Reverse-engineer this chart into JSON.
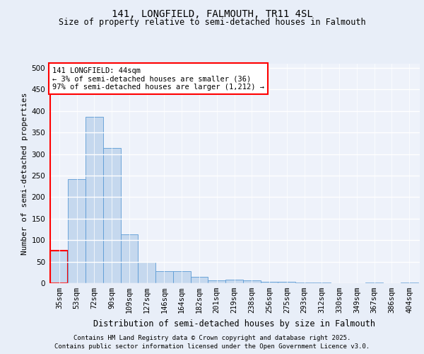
{
  "title1": "141, LONGFIELD, FALMOUTH, TR11 4SL",
  "title2": "Size of property relative to semi-detached houses in Falmouth",
  "xlabel": "Distribution of semi-detached houses by size in Falmouth",
  "ylabel": "Number of semi-detached properties",
  "categories": [
    "35sqm",
    "53sqm",
    "72sqm",
    "90sqm",
    "109sqm",
    "127sqm",
    "146sqm",
    "164sqm",
    "182sqm",
    "201sqm",
    "219sqm",
    "238sqm",
    "256sqm",
    "275sqm",
    "293sqm",
    "312sqm",
    "330sqm",
    "349sqm",
    "367sqm",
    "386sqm",
    "404sqm"
  ],
  "values": [
    75,
    242,
    387,
    315,
    113,
    50,
    28,
    28,
    14,
    6,
    8,
    6,
    4,
    3,
    2,
    1,
    0,
    0,
    1,
    0,
    2
  ],
  "bar_color": "#c5d8ee",
  "bar_edge_color": "#5b9bd5",
  "highlight_bar_index": 0,
  "highlight_edge_color": "red",
  "annotation_text": "141 LONGFIELD: 44sqm\n← 3% of semi-detached houses are smaller (36)\n97% of semi-detached houses are larger (1,212) →",
  "annotation_box_color": "white",
  "annotation_box_edge_color": "red",
  "red_line_x": -0.5,
  "ylim": [
    0,
    510
  ],
  "yticks": [
    0,
    50,
    100,
    150,
    200,
    250,
    300,
    350,
    400,
    450,
    500
  ],
  "footer1": "Contains HM Land Registry data © Crown copyright and database right 2025.",
  "footer2": "Contains public sector information licensed under the Open Government Licence v3.0.",
  "bg_color": "#e8eef8",
  "plot_bg_color": "#eef2fa",
  "grid_color": "#ffffff",
  "title1_fontsize": 10,
  "title2_fontsize": 8.5,
  "ylabel_fontsize": 8,
  "xlabel_fontsize": 8.5,
  "tick_fontsize": 7.5,
  "footer_fontsize": 6.5,
  "annot_fontsize": 7.5
}
